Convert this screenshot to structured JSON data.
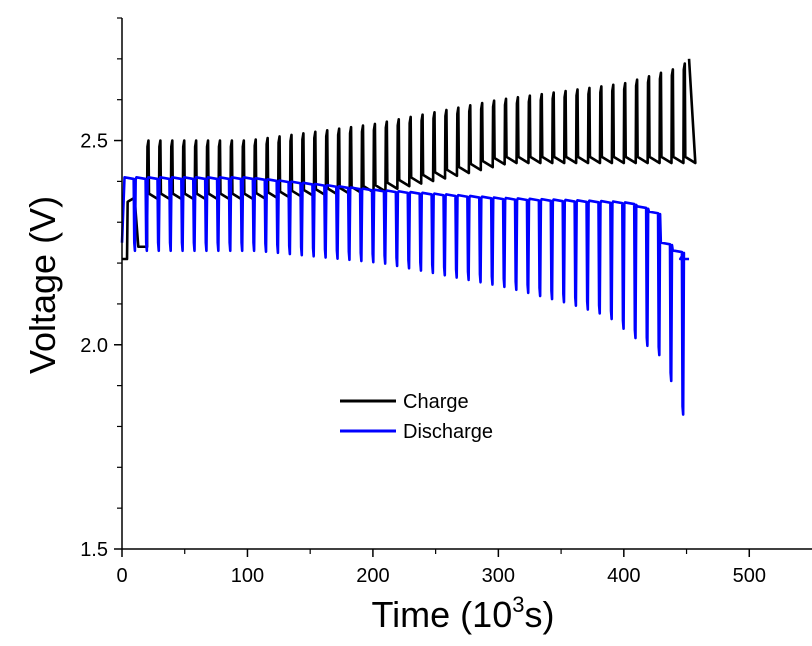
{
  "chart_data": {
    "type": "line",
    "xlabel_main": "Time (10",
    "xlabel_sup": "3",
    "xlabel_end": "s)",
    "ylabel": "Voltage (V)",
    "xlim": [
      0,
      550
    ],
    "ylim": [
      1.5,
      2.8
    ],
    "x_ticks": [
      0,
      100,
      200,
      300,
      400,
      500
    ],
    "y_ticks": [
      1.5,
      2.0,
      2.5
    ],
    "x_tick_labels": [
      "0",
      "100",
      "200",
      "300",
      "400",
      "500"
    ],
    "y_tick_labels": [
      "1.5",
      "2.0",
      "2.5"
    ],
    "legend": {
      "placement": "center"
    },
    "cycle_period": 9.5,
    "series": [
      {
        "name": "Charge",
        "color": "#000000",
        "start": [
          [
            0,
            2.21
          ],
          [
            4,
            2.21
          ],
          [
            4.5,
            2.35
          ],
          [
            10,
            2.36
          ],
          [
            13,
            2.24
          ],
          [
            20,
            2.24
          ]
        ],
        "cycle_start": 20,
        "cycle_end": 452,
        "high": [
          [
            20,
            2.5
          ],
          [
            100,
            2.5
          ],
          [
            200,
            2.54
          ],
          [
            300,
            2.6
          ],
          [
            400,
            2.64
          ],
          [
            445,
            2.68
          ],
          [
            452,
            2.7
          ]
        ],
        "low": [
          [
            20,
            2.36
          ],
          [
            100,
            2.36
          ],
          [
            200,
            2.38
          ],
          [
            260,
            2.42
          ],
          [
            300,
            2.45
          ],
          [
            452,
            2.45
          ]
        ]
      },
      {
        "name": "Discharge",
        "color": "#0000ff",
        "start": [
          [
            0,
            2.25
          ],
          [
            2,
            2.41
          ]
        ],
        "cycle_start": 2,
        "cycle_end": 445,
        "cycle_end_tail": [
          [
            445,
            2.21
          ],
          [
            452,
            2.21
          ]
        ],
        "high": [
          [
            2,
            2.41
          ],
          [
            100,
            2.41
          ],
          [
            200,
            2.38
          ],
          [
            300,
            2.36
          ],
          [
            400,
            2.35
          ],
          [
            420,
            2.33
          ],
          [
            430,
            2.25
          ],
          [
            445,
            2.22
          ]
        ],
        "low": [
          [
            2,
            2.23
          ],
          [
            100,
            2.23
          ],
          [
            200,
            2.2
          ],
          [
            300,
            2.14
          ],
          [
            350,
            2.1
          ],
          [
            380,
            2.07
          ],
          [
            400,
            2.02
          ],
          [
            420,
            1.98
          ],
          [
            432,
            1.9
          ],
          [
            443,
            1.8
          ]
        ]
      }
    ]
  }
}
